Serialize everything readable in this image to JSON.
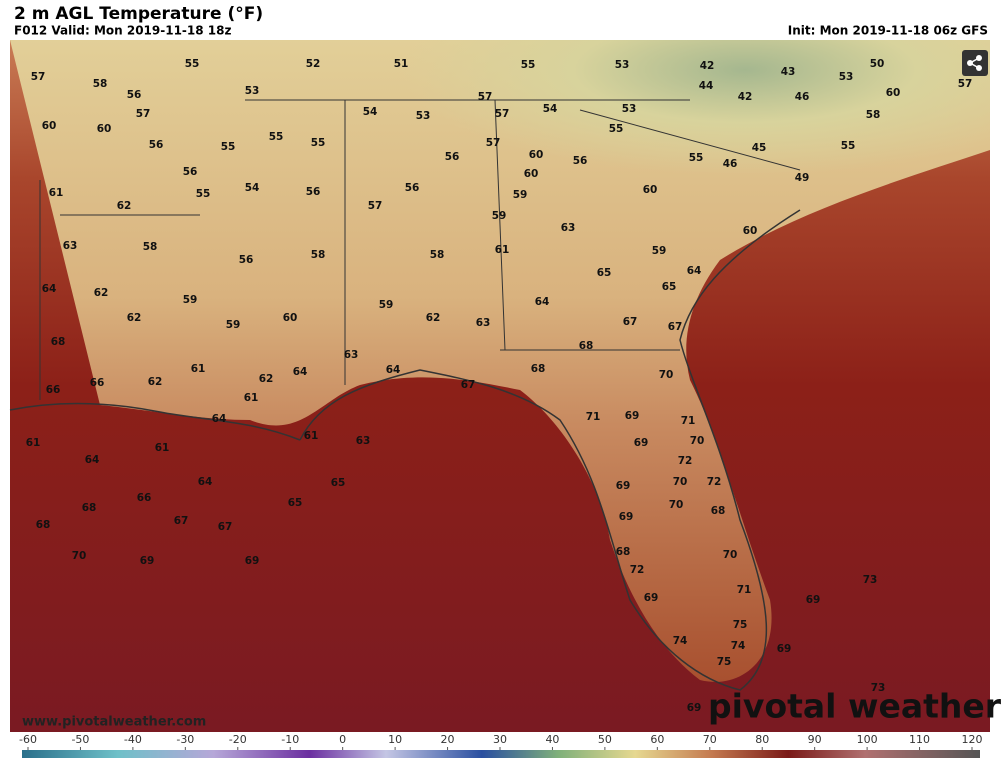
{
  "header": {
    "title": "2 m AGL Temperature (°F)",
    "valid": "F012 Valid: Mon 2019-11-18 18z",
    "init": "Init: Mon 2019-11-18 06z GFS"
  },
  "stations": [
    57,
    58,
    55,
    52,
    51,
    55,
    53,
    42,
    43,
    53,
    50,
    57,
    56,
    53,
    57,
    57,
    54,
    53,
    44,
    42,
    46,
    60,
    58,
    60,
    60,
    54,
    53,
    57,
    55,
    56,
    55,
    55,
    55,
    57,
    60,
    56,
    55,
    46,
    45,
    55,
    56,
    60,
    56,
    61,
    55,
    54,
    56,
    56,
    59,
    60,
    49,
    62,
    57,
    59,
    63,
    60,
    63,
    58,
    56,
    58,
    58,
    61,
    59,
    64,
    62,
    65,
    64,
    65,
    59,
    62,
    59,
    60,
    59,
    62,
    63,
    64,
    67,
    67,
    68,
    68,
    61,
    62,
    64,
    63,
    64,
    68,
    70,
    66,
    66,
    62,
    61,
    67,
    64,
    71,
    69,
    71,
    61,
    61,
    61,
    63,
    69,
    70,
    64,
    72,
    64,
    65,
    70,
    72,
    66,
    65,
    69,
    70,
    68,
    67,
    67,
    69,
    68,
    68,
    68,
    70,
    70,
    69,
    69,
    72,
    73,
    71,
    69,
    69,
    75,
    74,
    74,
    69,
    75,
    73,
    69
  ],
  "watermark": "www.pivotalweather.com",
  "logo": "pivotal weather",
  "colorbar": {
    "ticks": [
      -60,
      -50,
      -40,
      -30,
      -20,
      -10,
      0,
      10,
      20,
      30,
      40,
      50,
      60,
      70,
      80,
      90,
      100,
      110,
      120
    ]
  }
}
